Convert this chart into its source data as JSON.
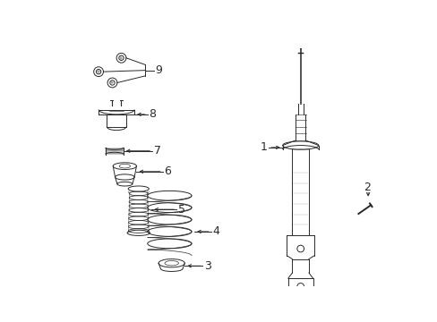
{
  "background_color": "#ffffff",
  "line_color": "#2a2a2a",
  "figsize": [
    4.89,
    3.6
  ],
  "dpi": 100,
  "parts": {
    "1": "1",
    "2": "2",
    "3": "3",
    "4": "4",
    "5": "5",
    "6": "6",
    "7": "7",
    "8": "8",
    "9": "9"
  }
}
